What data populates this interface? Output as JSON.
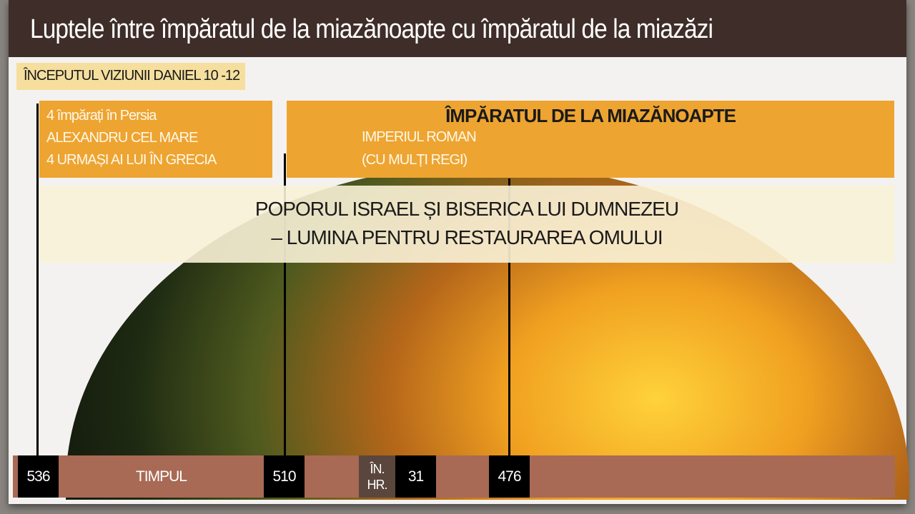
{
  "title": "Luptele între împăratul de la miazănoapte cu împăratul de la miazăzi",
  "tag": "ÎNCEPUTUL VIZIUNII DANIEL 10 -12",
  "left_box": {
    "lines": [
      "4 împărați în Persia",
      "ALEXANDRU CEL MARE",
      "4 URMAȘI AI LUI ÎN GRECIA"
    ]
  },
  "right_box": {
    "heading": "ÎMPĂRATUL DE LA MIAZĂNOAPTE",
    "lines": [
      "IMPERIUL ROMAN",
      "(CU MULȚI REGI)"
    ]
  },
  "band": {
    "lines": [
      "POPORUL ISRAEL ȘI BISERICA LUI DUMNEZEU",
      "– LUMINA PENTRU RESTAURAREA OMULUI"
    ]
  },
  "timeline": {
    "start": "536",
    "label": "TIMPUL",
    "y510": "510",
    "era_line1": "ÎN.",
    "era_line2": "HR.",
    "y31": "31",
    "y476": "476"
  },
  "colors": {
    "title_bg": "#3e2d28",
    "orange": "#eea431",
    "timeline": "#a86a55",
    "tag": "#f6df9e"
  }
}
